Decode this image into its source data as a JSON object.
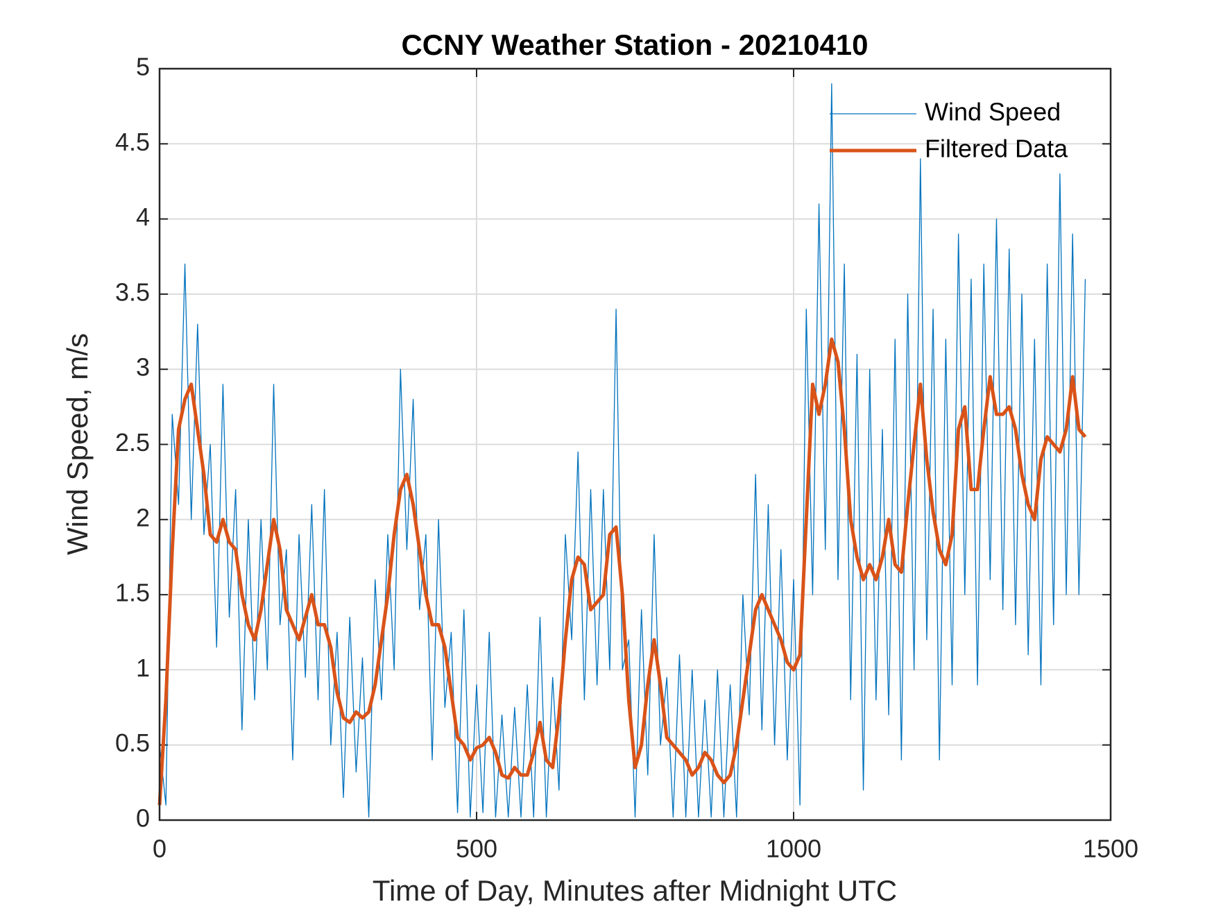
{
  "chart_data": {
    "type": "line",
    "title": "CCNY Weather Station - 20210410",
    "xlabel": "Time of Day, Minutes after Midnight UTC",
    "ylabel": "Wind Speed, m/s",
    "xlim": [
      0,
      1500
    ],
    "xticks": [
      0,
      500,
      1000,
      1500
    ],
    "ylim": [
      0,
      5
    ],
    "yticks": [
      0,
      0.5,
      1,
      1.5,
      2,
      2.5,
      3,
      3.5,
      4,
      4.5,
      5
    ],
    "grid": true,
    "legend": "northeast",
    "x": [
      0,
      10,
      20,
      30,
      40,
      50,
      60,
      70,
      80,
      90,
      100,
      110,
      120,
      130,
      140,
      150,
      160,
      170,
      180,
      190,
      200,
      210,
      220,
      230,
      240,
      250,
      260,
      270,
      280,
      290,
      300,
      310,
      320,
      330,
      340,
      350,
      360,
      370,
      380,
      390,
      400,
      410,
      420,
      430,
      440,
      450,
      460,
      470,
      480,
      490,
      500,
      510,
      520,
      530,
      540,
      550,
      560,
      570,
      580,
      590,
      600,
      610,
      620,
      630,
      640,
      650,
      660,
      670,
      680,
      690,
      700,
      710,
      720,
      730,
      740,
      750,
      760,
      770,
      780,
      790,
      800,
      810,
      820,
      830,
      840,
      850,
      860,
      870,
      880,
      890,
      900,
      910,
      920,
      930,
      940,
      950,
      960,
      970,
      980,
      990,
      1000,
      1010,
      1020,
      1030,
      1040,
      1050,
      1060,
      1070,
      1080,
      1090,
      1100,
      1110,
      1120,
      1130,
      1140,
      1150,
      1160,
      1170,
      1180,
      1190,
      1200,
      1210,
      1220,
      1230,
      1240,
      1250,
      1260,
      1270,
      1280,
      1290,
      1300,
      1310,
      1320,
      1330,
      1340,
      1350,
      1360,
      1370,
      1380,
      1390,
      1400,
      1410,
      1420,
      1430,
      1440,
      1450,
      1460
    ],
    "series": [
      {
        "name": "Wind Speed",
        "color": "#0072bd",
        "width": 1.3,
        "values": [
          0.5,
          0.1,
          2.7,
          2.1,
          3.7,
          2.0,
          3.3,
          1.9,
          2.5,
          1.15,
          2.9,
          1.35,
          2.2,
          0.6,
          2.0,
          0.8,
          2.0,
          1.0,
          2.9,
          1.3,
          1.8,
          0.4,
          1.9,
          0.95,
          2.1,
          0.8,
          2.2,
          0.5,
          1.25,
          0.15,
          1.35,
          0.32,
          1.08,
          0.02,
          1.6,
          0.8,
          1.9,
          1.0,
          3.0,
          1.8,
          2.8,
          1.4,
          1.9,
          0.4,
          2.0,
          0.75,
          1.25,
          0.05,
          1.4,
          0.02,
          0.9,
          0.05,
          1.25,
          0.02,
          0.7,
          0.02,
          0.75,
          0.02,
          0.9,
          0.02,
          1.35,
          0.02,
          0.95,
          0.2,
          1.9,
          1.2,
          2.45,
          0.8,
          2.2,
          0.9,
          2.2,
          1.0,
          3.4,
          1.0,
          1.2,
          0.02,
          1.4,
          0.3,
          1.9,
          0.5,
          0.95,
          0.02,
          1.1,
          0.02,
          1.0,
          0.02,
          0.8,
          0.02,
          1.0,
          0.02,
          0.9,
          0.02,
          1.5,
          0.7,
          2.3,
          0.6,
          2.1,
          0.5,
          1.8,
          0.4,
          1.6,
          0.1,
          3.4,
          1.5,
          4.1,
          1.8,
          4.9,
          1.6,
          3.7,
          0.8,
          3.1,
          0.2,
          3.0,
          0.8,
          2.6,
          0.7,
          3.2,
          0.4,
          3.5,
          1.0,
          4.4,
          1.2,
          3.4,
          0.4,
          3.2,
          0.9,
          3.9,
          1.5,
          3.6,
          0.9,
          3.7,
          1.6,
          4.0,
          1.4,
          3.8,
          1.3,
          3.5,
          1.1,
          3.2,
          0.9,
          3.7,
          1.3,
          4.3,
          1.5,
          3.9,
          1.5,
          3.6
        ]
      },
      {
        "name": "Filtered Data",
        "color": "#d95319",
        "width": 5,
        "values": [
          0.1,
          0.8,
          1.8,
          2.6,
          2.8,
          2.9,
          2.6,
          2.3,
          1.9,
          1.85,
          2.0,
          1.85,
          1.8,
          1.5,
          1.3,
          1.2,
          1.4,
          1.7,
          2.0,
          1.8,
          1.4,
          1.3,
          1.2,
          1.35,
          1.5,
          1.3,
          1.3,
          1.15,
          0.85,
          0.68,
          0.65,
          0.72,
          0.68,
          0.72,
          0.9,
          1.2,
          1.5,
          1.9,
          2.2,
          2.3,
          2.1,
          1.8,
          1.5,
          1.3,
          1.3,
          1.15,
          0.85,
          0.55,
          0.5,
          0.4,
          0.48,
          0.5,
          0.55,
          0.45,
          0.3,
          0.28,
          0.35,
          0.3,
          0.3,
          0.45,
          0.65,
          0.4,
          0.35,
          0.7,
          1.2,
          1.6,
          1.75,
          1.7,
          1.4,
          1.45,
          1.5,
          1.9,
          1.95,
          1.5,
          0.8,
          0.35,
          0.5,
          0.9,
          1.2,
          0.9,
          0.55,
          0.5,
          0.45,
          0.4,
          0.3,
          0.35,
          0.45,
          0.4,
          0.3,
          0.25,
          0.3,
          0.5,
          0.8,
          1.1,
          1.4,
          1.5,
          1.4,
          1.3,
          1.2,
          1.05,
          1.0,
          1.1,
          2.0,
          2.9,
          2.7,
          2.9,
          3.2,
          3.05,
          2.6,
          2.0,
          1.75,
          1.6,
          1.7,
          1.6,
          1.75,
          2.0,
          1.7,
          1.65,
          2.1,
          2.5,
          2.9,
          2.4,
          2.05,
          1.8,
          1.7,
          1.9,
          2.6,
          2.75,
          2.2,
          2.2,
          2.6,
          2.95,
          2.7,
          2.7,
          2.75,
          2.6,
          2.3,
          2.1,
          2.0,
          2.4,
          2.55,
          2.5,
          2.45,
          2.6,
          2.95,
          2.6,
          2.55
        ]
      }
    ]
  }
}
